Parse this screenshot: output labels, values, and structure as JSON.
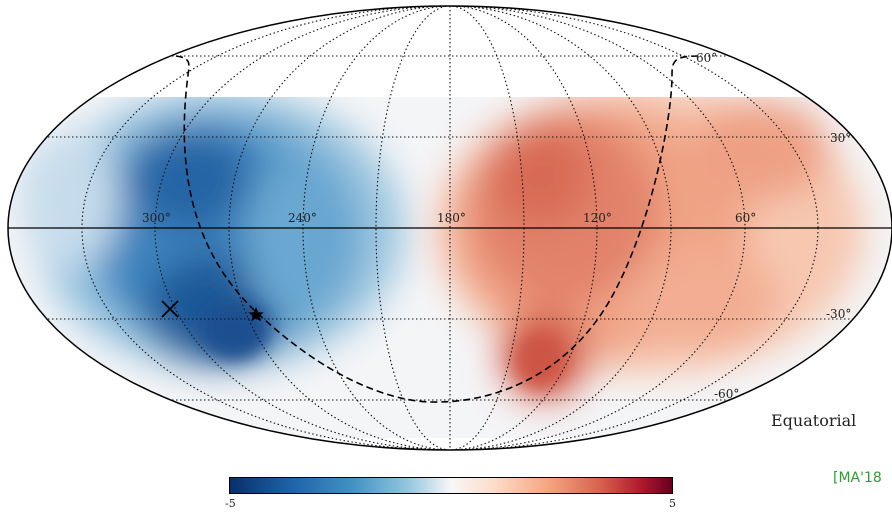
{
  "map": {
    "projection": "mollweide",
    "colormap": "RdBu_r",
    "lon_labels": [
      "300°",
      "240°",
      "180°",
      "120°",
      "60°"
    ],
    "lat_labels": [
      "60°",
      "30°",
      "-30°",
      "-60°"
    ],
    "frame_label": "Equatorial",
    "credit": "[MA'18",
    "markers": [
      {
        "symbol": "x-cross",
        "lon": 295,
        "lat": -27
      },
      {
        "symbol": "star",
        "lon": 257,
        "lat": -29
      }
    ]
  },
  "colorbar": {
    "min_label": "-5",
    "max_label": "5",
    "min": -5,
    "max": 5,
    "colors": [
      "#08306b",
      "#2166ac",
      "#4393c3",
      "#92c5de",
      "#f7f7f7",
      "#fddbc7",
      "#f4a582",
      "#d6604d",
      "#b2182b",
      "#67001f"
    ]
  }
}
